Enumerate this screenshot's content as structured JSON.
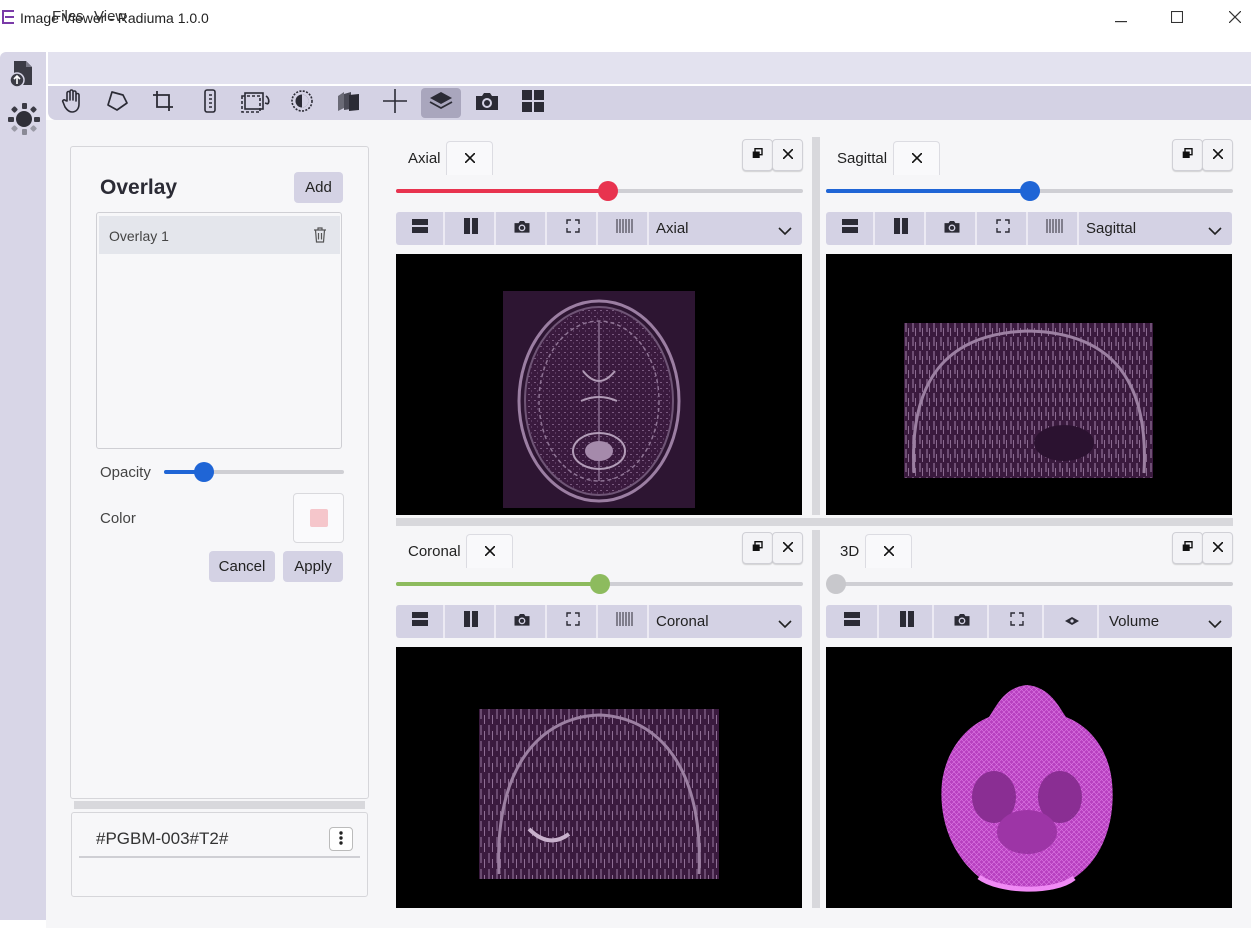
{
  "window": {
    "title": "Image Viewer - Radiuma 1.0.0",
    "controls": [
      "minimize-icon",
      "maximize-icon",
      "close-icon"
    ]
  },
  "menu": {
    "files": "Files",
    "view": "View"
  },
  "toolbar": {
    "tools": [
      "pan-hand-icon",
      "polygon-icon",
      "crop-icon",
      "ruler-icon",
      "rotate-icon",
      "contrast-icon",
      "stack-icon",
      "crosshair-icon",
      "layers-icon",
      "camera-icon",
      "grid-icon"
    ],
    "active_tool": "layers-icon"
  },
  "overlay_panel": {
    "title": "Overlay",
    "add_label": "Add",
    "items": [
      "Overlay 1"
    ],
    "opacity_label": "Opacity",
    "opacity_value": 0.22,
    "color_label": "Color",
    "color_value": "#f5c6cb",
    "cancel_label": "Cancel",
    "apply_label": "Apply"
  },
  "series": {
    "name": "#PGBM-003#T2#"
  },
  "viewers": {
    "axial": {
      "tab": "Axial",
      "view_select": "Axial",
      "slider_value": 0.52,
      "slider_color": "#e8334f"
    },
    "sagittal": {
      "tab": "Sagittal",
      "view_select": "Sagittal",
      "slider_value": 0.5,
      "slider_color": "#1f65d6"
    },
    "coronal": {
      "tab": "Coronal",
      "view_select": "Coronal",
      "slider_value": 0.5,
      "slider_color": "#8dbb5e"
    },
    "threed": {
      "tab": "3D",
      "view_select": "Volume",
      "slider_value": 0.0,
      "slider_color": "#c8c8cc"
    }
  },
  "colors": {
    "accent_purple": "#d4d2e4",
    "active_tool_bg": "#a9a6bd",
    "overlay_tint": "#3a1838",
    "volume_magenta": "#c64bd0"
  }
}
